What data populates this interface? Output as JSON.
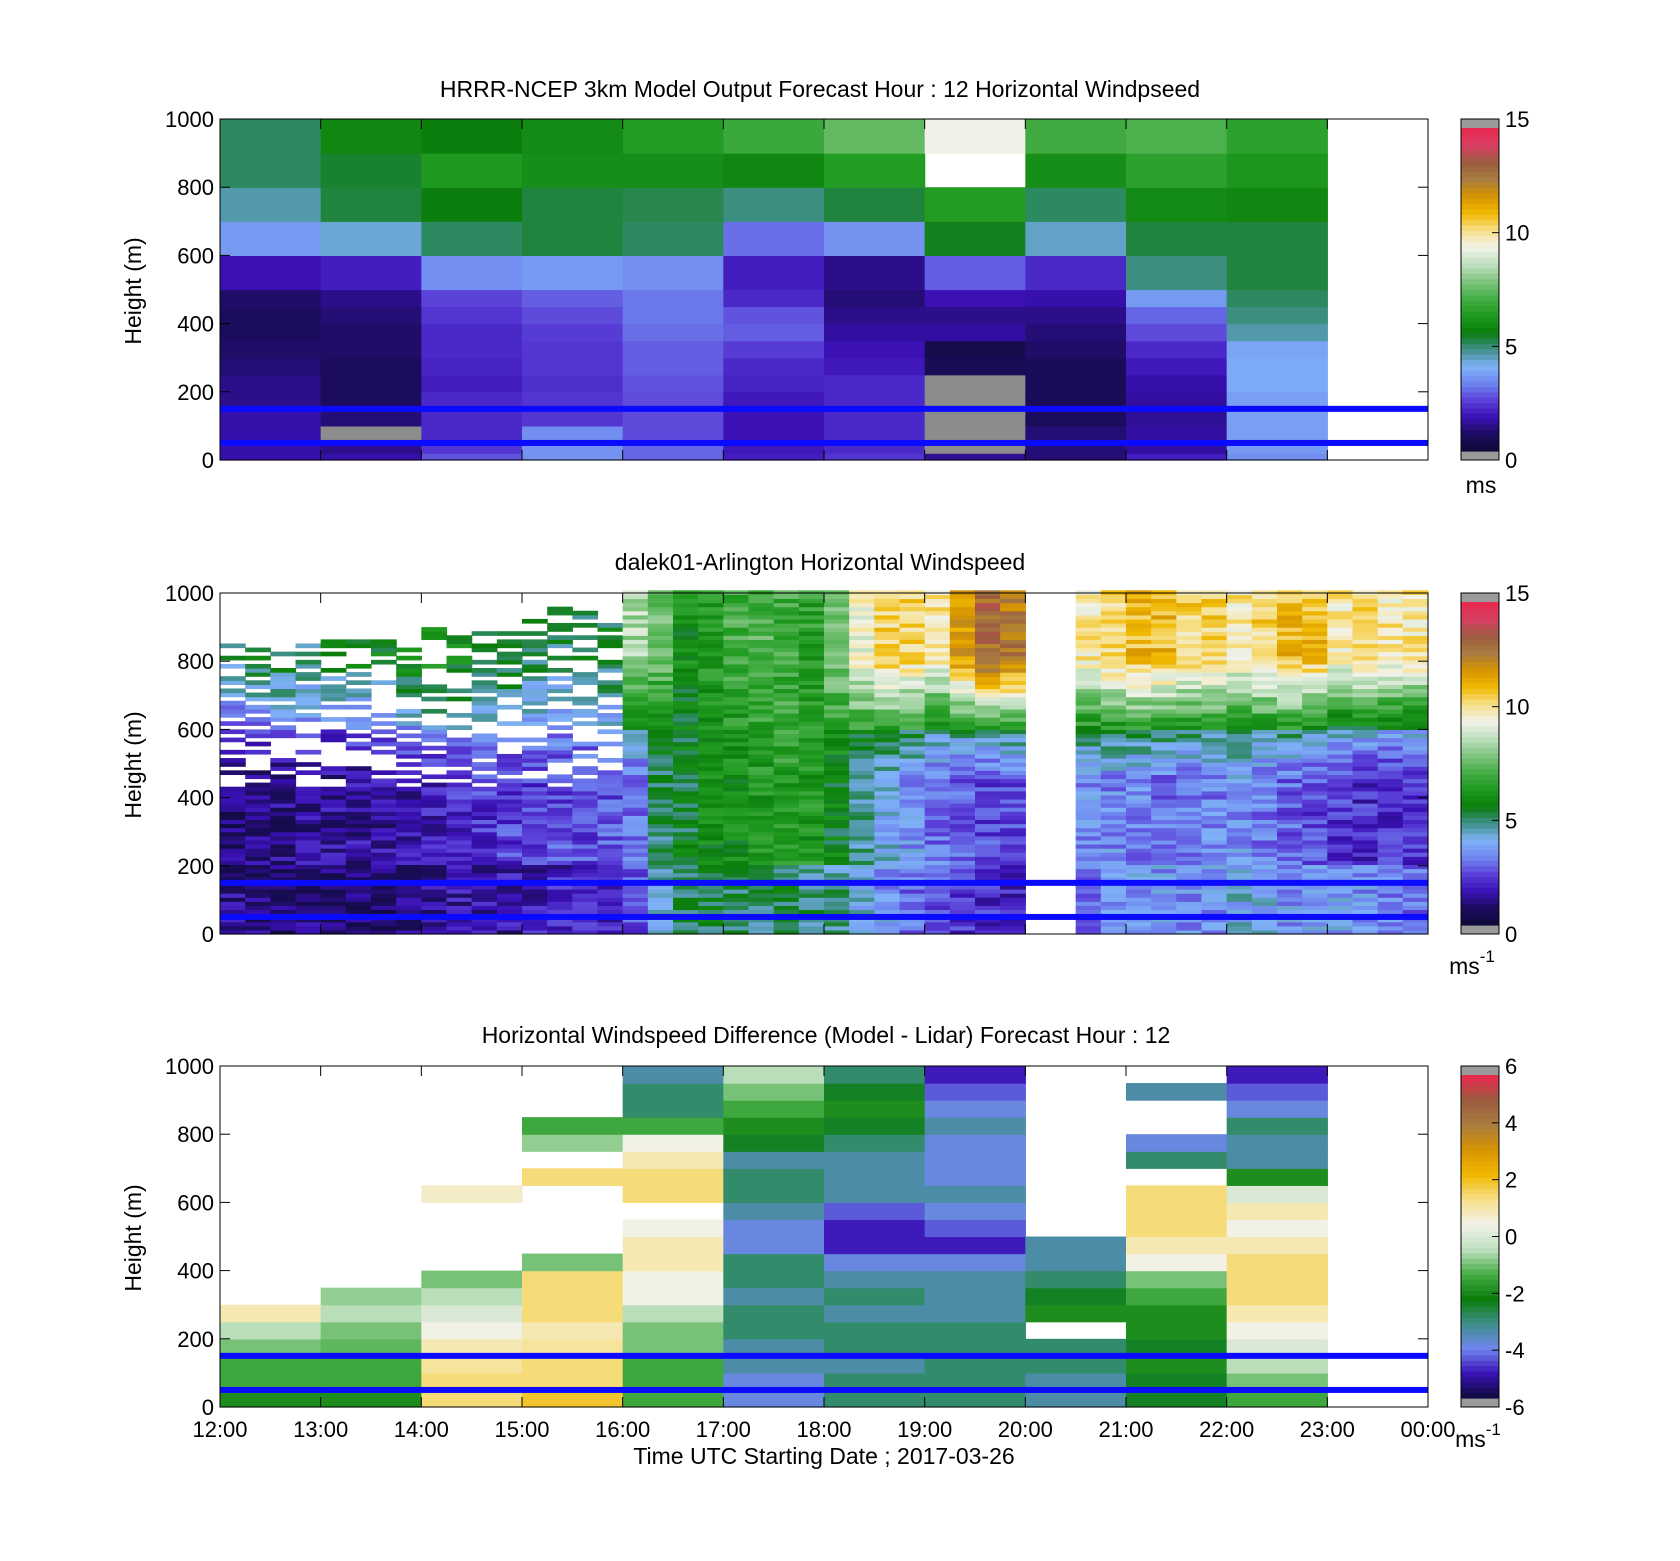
{
  "colors": {
    "reference_line": "#0a0aff",
    "windspeed_colormap": [
      "#0d0b3a",
      "#1c0c5c",
      "#3a10b5",
      "#5a3fd8",
      "#6f86ef",
      "#7fb2f7",
      "#3f8f8a",
      "#0a7d0a",
      "#1f9a1f",
      "#45ad45",
      "#7fc47f",
      "#bfe0bf",
      "#f2f2ea",
      "#f7e08a",
      "#f0b800",
      "#d69400",
      "#a87d40",
      "#9c5c40",
      "#d94065",
      "#e8284e"
    ],
    "difference_colormap": [
      "#0d0b3a",
      "#3a10b5",
      "#6f86ef",
      "#3f8f8a",
      "#0a7d0a",
      "#45ad45",
      "#bfe0bf",
      "#f2f2ea",
      "#f7e08a",
      "#f0b800",
      "#d69400",
      "#a87d40",
      "#9c5c40",
      "#e8284e"
    ],
    "missing": "#8c8c8c",
    "colorbar_cap": "#9a9a9a"
  },
  "panels": [
    {
      "title": "HRRR-NCEP 3km Model Output   Forecast Hour : 12 Horizontal Windpseed",
      "ylabel": "Height (m)",
      "unit": "ms",
      "unit_superscript": "",
      "yticks": [
        "0",
        "200",
        "400",
        "600",
        "800",
        "1000"
      ],
      "colorbar_ticks": [
        "0",
        "5",
        "10",
        "15"
      ]
    },
    {
      "title": "dalek01-Arlington  Horizontal Windspeed",
      "ylabel": "Height (m)",
      "unit": "ms",
      "unit_superscript": "-1",
      "yticks": [
        "0",
        "200",
        "400",
        "600",
        "800",
        "1000"
      ],
      "colorbar_ticks": [
        "0",
        "5",
        "10",
        "15"
      ]
    },
    {
      "title": "Horizontal Windspeed Difference (Model - Lidar) Forecast Hour : 12",
      "ylabel": "Height (m)",
      "unit": "ms",
      "unit_superscript": "-1",
      "yticks": [
        "0",
        "200",
        "400",
        "600",
        "800",
        "1000"
      ],
      "colorbar_ticks": [
        "-6",
        "-4",
        "-2",
        "0",
        "2",
        "4",
        "6"
      ],
      "xticks": [
        "12:00",
        "13:00",
        "14:00",
        "15:00",
        "16:00",
        "17:00",
        "18:00",
        "19:00",
        "20:00",
        "21:00",
        "22:00",
        "23:00",
        "00:00"
      ],
      "xlabel": "Time UTC  Starting Date ; 2017-03-26"
    }
  ],
  "chart_data": [
    {
      "type": "heatmap",
      "title": "HRRR-NCEP 3km Model Output   Forecast Hour : 12 Horizontal Windpseed",
      "xlabel": "",
      "ylabel": "Height (m)",
      "xlim": [
        "12:00",
        "00:00"
      ],
      "ylim": [
        0,
        1000
      ],
      "colorbar_range": [
        0,
        15
      ],
      "reference_heights": [
        50,
        150
      ],
      "time_columns": [
        "12:00",
        "13:00",
        "14:00",
        "15:00",
        "16:00",
        "17:00",
        "18:00",
        "19:00",
        "20:00",
        "21:00",
        "22:00"
      ],
      "height_levels": [
        0,
        20,
        50,
        100,
        150,
        200,
        250,
        300,
        350,
        400,
        450,
        500,
        600,
        700,
        800,
        900,
        1000
      ],
      "values": [
        [
          1.5,
          1.5,
          1.5,
          1.5,
          1.2,
          1.2,
          1.0,
          0.9,
          0.8,
          0.8,
          0.9,
          1.6,
          3.5,
          4.5,
          5.0,
          5.0
        ],
        [
          1.5,
          1.2,
          null,
          1.0,
          0.8,
          0.8,
          0.8,
          0.9,
          0.9,
          1.0,
          1.2,
          1.8,
          4.2,
          5.2,
          5.3,
          5.8
        ],
        [
          2.6,
          2.2,
          2.0,
          2.0,
          2.0,
          1.8,
          1.9,
          2.0,
          2.0,
          2.2,
          2.4,
          3.3,
          5.0,
          5.5,
          6.3,
          5.5
        ],
        [
          3.4,
          3.4,
          3.3,
          2.2,
          2.2,
          2.1,
          2.2,
          2.2,
          2.3,
          2.5,
          2.7,
          3.5,
          5.2,
          5.2,
          6.0,
          5.9
        ],
        [
          2.8,
          2.8,
          2.5,
          2.5,
          2.5,
          2.6,
          2.7,
          2.7,
          2.9,
          3.0,
          3.0,
          3.3,
          5.0,
          5.1,
          6.0,
          6.4
        ],
        [
          1.8,
          1.7,
          1.6,
          1.6,
          1.7,
          1.9,
          2.0,
          2.3,
          2.7,
          2.6,
          2.0,
          1.8,
          2.9,
          4.8,
          5.8,
          6.9
        ],
        [
          2.2,
          2.0,
          2.0,
          2.0,
          2.0,
          2.0,
          1.7,
          1.6,
          1.4,
          1.2,
          1.0,
          1.2,
          3.4,
          5.2,
          6.4,
          7.5
        ],
        [
          1.3,
          null,
          null,
          null,
          null,
          null,
          0.6,
          0.4,
          1.4,
          1.2,
          1.6,
          2.7,
          5.4,
          6.4,
          null,
          9.5
        ],
        [
          1.0,
          1.0,
          1.0,
          0.8,
          0.7,
          0.7,
          0.7,
          0.9,
          1.0,
          1.2,
          1.5,
          2.0,
          4.3,
          5.0,
          6.0,
          7.0
        ],
        [
          1.8,
          1.4,
          1.4,
          1.3,
          1.4,
          1.5,
          1.7,
          2.0,
          2.5,
          2.8,
          3.5,
          4.8,
          5.2,
          5.9,
          6.6,
          7.2
        ],
        [
          3.3,
          3.5,
          3.6,
          3.6,
          3.6,
          3.8,
          3.8,
          3.7,
          4.5,
          4.8,
          5.0,
          5.2,
          5.2,
          5.8,
          6.2,
          6.6
        ]
      ]
    },
    {
      "type": "heatmap",
      "title": "dalek01-Arlington  Horizontal Windspeed",
      "xlabel": "",
      "ylabel": "Height (m)",
      "xlim": [
        "12:00",
        "00:00"
      ],
      "ylim": [
        0,
        1000
      ],
      "colorbar_range": [
        0,
        15
      ],
      "reference_heights": [
        50,
        150
      ],
      "time_columns": [
        "12:00",
        "12:15",
        "12:30",
        "12:45",
        "13:00",
        "13:15",
        "13:30",
        "13:45",
        "14:00",
        "14:15",
        "14:30",
        "14:45",
        "15:00",
        "15:15",
        "15:30",
        "15:45",
        "16:00",
        "16:15",
        "16:30",
        "16:45",
        "17:00",
        "17:15",
        "17:30",
        "17:45",
        "18:00",
        "18:15",
        "18:30",
        "18:45",
        "19:00",
        "19:15",
        "19:30",
        "19:45",
        "20:00",
        "20:15",
        "20:30",
        "20:45",
        "21:00",
        "21:15",
        "21:30",
        "21:45",
        "22:00",
        "22:15",
        "22:30",
        "22:45",
        "23:00",
        "23:15",
        "23:30",
        "23:45"
      ],
      "profile_tops_m": [
        860,
        860,
        860,
        860,
        860,
        860,
        860,
        860,
        900,
        900,
        900,
        920,
        930,
        950,
        950,
        960,
        1000,
        1000,
        1000,
        1000,
        1000,
        1000,
        1000,
        1000,
        1000,
        1000,
        1000,
        1000,
        1000,
        1000,
        1000,
        1000,
        0,
        0,
        1000,
        1000,
        1000,
        1000,
        1000,
        1000,
        1000,
        1000,
        1000,
        1000,
        1000,
        1000,
        1000,
        1000
      ],
      "mean_speed_by_column_ms": {
        "0-200m": [
          1.2,
          1.2,
          1.0,
          1.1,
          1.0,
          0.9,
          1.0,
          1.2,
          1.4,
          1.5,
          1.5,
          1.6,
          1.7,
          1.8,
          1.8,
          1.9,
          2.5,
          4.5,
          5.0,
          5.2,
          5.0,
          5.0,
          5.0,
          4.8,
          4.6,
          4.0,
          3.5,
          3.0,
          2.5,
          2.2,
          2.0,
          1.8,
          null,
          null,
          3.0,
          3.2,
          3.5,
          3.5,
          3.4,
          3.4,
          4.0,
          3.8,
          3.5,
          3.6,
          3.6,
          3.4,
          3.2,
          3.0
        ],
        "200-600m": [
          1.0,
          1.0,
          1.2,
          1.3,
          1.4,
          1.5,
          1.5,
          1.7,
          1.8,
          2.0,
          2.2,
          2.3,
          2.4,
          2.5,
          2.5,
          2.6,
          3.0,
          5.0,
          5.3,
          5.8,
          6.0,
          6.3,
          6.5,
          6.2,
          5.5,
          4.6,
          4.0,
          3.5,
          3.0,
          2.6,
          2.3,
          2.5,
          null,
          null,
          3.4,
          3.3,
          3.2,
          3.0,
          3.0,
          3.2,
          3.5,
          3.0,
          2.8,
          2.5,
          2.2,
          2.0,
          2.0,
          2.2
        ],
        "600-1000m": [
          5.0,
          5.5,
          5.5,
          5.0,
          5.2,
          5.5,
          5.5,
          6.0,
          6.5,
          6.0,
          5.5,
          5.5,
          5.0,
          5.0,
          5.0,
          5.2,
          8.5,
          7.5,
          6.0,
          6.5,
          7.0,
          7.2,
          7.0,
          6.5,
          8.0,
          9.5,
          10.5,
          10.5,
          10.0,
          11.5,
          13.0,
          12.5,
          null,
          null,
          10.0,
          10.5,
          11.0,
          11.0,
          10.5,
          10.5,
          10.0,
          10.5,
          11.0,
          11.0,
          10.0,
          10.5,
          10.0,
          10.0
        ]
      }
    },
    {
      "type": "heatmap",
      "title": "Horizontal Windspeed Difference (Model - Lidar) Forecast Hour : 12",
      "xlabel": "Time UTC  Starting Date ; 2017-03-26",
      "ylabel": "Height (m)",
      "xlim": [
        "12:00",
        "00:00"
      ],
      "ylim": [
        0,
        1000
      ],
      "colorbar_range": [
        -6,
        6
      ],
      "reference_heights": [
        50,
        150
      ],
      "time_columns": [
        "12:00",
        "13:00",
        "14:00",
        "15:00",
        "16:00",
        "17:00",
        "18:00",
        "19:00",
        "20:00",
        "21:00",
        "22:00"
      ],
      "height_levels": [
        0,
        50,
        100,
        150,
        200,
        250,
        300,
        350,
        400,
        450,
        500,
        550,
        600,
        650,
        700,
        750,
        800,
        850,
        900,
        950,
        1000
      ],
      "values": [
        [
          -2.0,
          -1.5,
          -1.5,
          -1.0,
          -0.5,
          1.0,
          null,
          null,
          null,
          null,
          null,
          null,
          null,
          null,
          null,
          null,
          null,
          null,
          null,
          null
        ],
        [
          -2.0,
          -1.5,
          -1.5,
          -1.2,
          -1.0,
          -0.5,
          -0.8,
          null,
          null,
          null,
          null,
          null,
          null,
          null,
          null,
          null,
          null,
          null,
          null,
          null
        ],
        [
          1.5,
          1.5,
          1.2,
          1.0,
          0.5,
          0.0,
          -0.5,
          -1.0,
          null,
          null,
          null,
          null,
          0.8,
          null,
          null,
          null,
          null,
          null,
          null,
          null
        ],
        [
          2.0,
          1.5,
          1.5,
          1.2,
          1.0,
          1.5,
          1.5,
          1.5,
          -1.0,
          null,
          null,
          null,
          null,
          1.5,
          null,
          -0.8,
          -1.5,
          null,
          null,
          null
        ],
        [
          -1.5,
          -1.5,
          -1.5,
          -1.0,
          -1.0,
          -0.5,
          0.5,
          0.5,
          1.0,
          1.0,
          0.5,
          null,
          1.5,
          1.5,
          1.0,
          0.5,
          -1.5,
          -3.0,
          -3.0,
          -3.5
        ],
        [
          -4.0,
          -4.0,
          -3.5,
          -3.5,
          -3.0,
          -3.0,
          -3.5,
          -3.0,
          -3.0,
          -4.0,
          -4.0,
          -3.5,
          -3.0,
          -3.0,
          -3.5,
          -2.5,
          -2.0,
          -1.5,
          -1.0,
          -0.5
        ],
        [
          -3.0,
          -3.0,
          -3.5,
          -3.0,
          -3.0,
          -3.5,
          -3.0,
          -3.5,
          -4.0,
          -5.0,
          -5.0,
          -4.5,
          -3.5,
          -3.5,
          -3.5,
          -3.0,
          -2.5,
          -2.0,
          -2.5,
          -3.0
        ],
        [
          -3.0,
          -3.0,
          -3.0,
          -3.0,
          -3.0,
          -3.5,
          -3.5,
          -3.5,
          -4.0,
          -5.0,
          -4.5,
          -4.0,
          -3.5,
          -4.0,
          -4.0,
          -4.0,
          -3.5,
          -4.0,
          -4.5,
          -5.0
        ],
        [
          -3.5,
          -3.5,
          -3.0,
          -3.0,
          null,
          -2.0,
          -2.5,
          -3.0,
          -3.5,
          -3.5,
          null,
          null,
          null,
          null,
          null,
          null,
          null,
          null,
          null,
          null
        ],
        [
          -2.5,
          -2.5,
          -2.0,
          -2.5,
          -2.0,
          -2.0,
          -1.5,
          -1.0,
          0.5,
          1.0,
          1.5,
          1.5,
          1.5,
          null,
          -3.0,
          -4.0,
          null,
          null,
          -3.5,
          null
        ],
        [
          -1.5,
          -1.0,
          -0.5,
          0.0,
          0.5,
          1.0,
          1.5,
          1.5,
          1.5,
          1.0,
          0.5,
          1.0,
          0.0,
          -2.0,
          -3.5,
          -3.5,
          -3.0,
          -4.0,
          -4.5,
          -5.0
        ]
      ]
    }
  ]
}
